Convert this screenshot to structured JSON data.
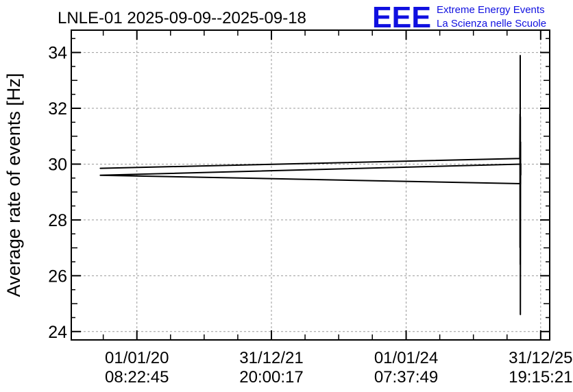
{
  "chart_data": {
    "type": "line",
    "title": "LNLE-01 2025-09-09--2025-09-18",
    "xlabel": "",
    "ylabel": "Average rate of events [Hz]",
    "ylim": [
      23.7,
      34.8
    ],
    "yticks": [
      24,
      26,
      28,
      30,
      32,
      34
    ],
    "xlim": [
      "2019-01-10",
      "2026-02-18"
    ],
    "xticks": [
      {
        "date": "01/01/20",
        "time": "08:22:45"
      },
      {
        "date": "31/12/21",
        "time": "20:00:17"
      },
      {
        "date": "01/01/24",
        "time": "07:37:49"
      },
      {
        "date": "31/12/25",
        "time": "19:15:21"
      }
    ],
    "grid": true,
    "series": [
      {
        "color": "#000000",
        "points": [
          {
            "x": "2019-06-15",
            "y": 29.85
          },
          {
            "x": "2025-09-09",
            "y": 30.2
          },
          {
            "x": "2025-09-10",
            "y": 31.8
          },
          {
            "x": "2025-09-10",
            "y": 27.0
          },
          {
            "x": "2025-09-11",
            "y": 33.9
          },
          {
            "x": "2025-09-11",
            "y": 26.4
          },
          {
            "x": "2025-09-12",
            "y": 31.7
          },
          {
            "x": "2025-09-12",
            "y": 24.6
          },
          {
            "x": "2025-09-13",
            "y": 30.8
          },
          {
            "x": "2025-09-13",
            "y": 29.3
          },
          {
            "x": "2019-06-15",
            "y": 29.6
          },
          {
            "x": "2025-09-14",
            "y": 30.0
          },
          {
            "x": "2025-09-14",
            "y": 29.6
          }
        ]
      }
    ]
  },
  "logo": {
    "mark": "EEE",
    "line1": "Extreme Energy Events",
    "line2": "La Scienza nelle Scuole",
    "color": "#1010e0"
  }
}
